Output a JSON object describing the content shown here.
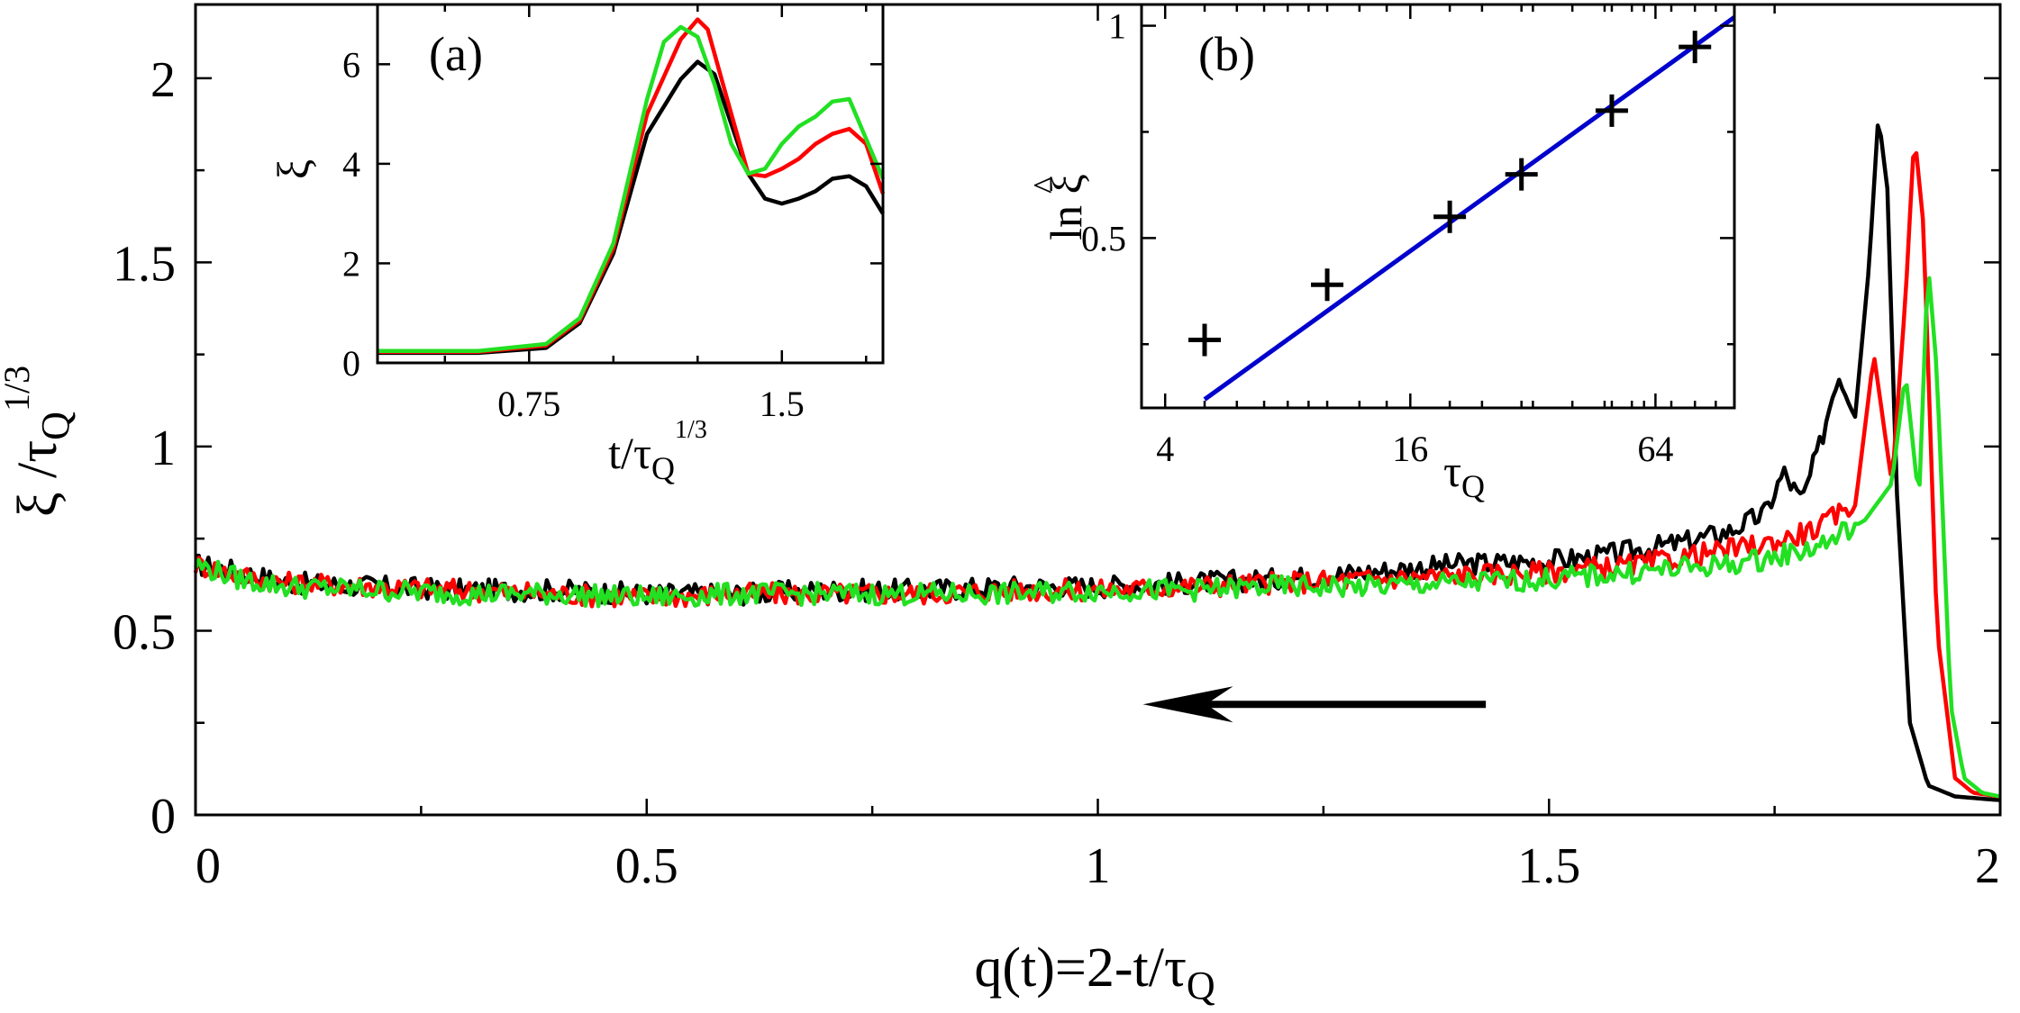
{
  "colors": {
    "black": "#000000",
    "red": "#ff0000",
    "green": "#22e022",
    "blue": "#0000cc"
  },
  "chart_data": [
    {
      "id": "main",
      "type": "line",
      "xlabel": "q(t)=2-t/τ_Q",
      "ylabel": "ξ /τ_Q^{1/3}",
      "xlim": [
        0,
        2
      ],
      "ylim": [
        0,
        2.2
      ],
      "xticks": [
        0,
        0.5,
        1,
        1.5,
        2
      ],
      "xtick_labels": [
        "0",
        "0.5",
        "1",
        "1.5",
        "2"
      ],
      "yticks": [
        0,
        0.5,
        1,
        1.5,
        2
      ],
      "ytick_labels": [
        "0",
        "0.5",
        "1",
        "1.5",
        "2"
      ],
      "annotation": "arrow pointing left (decreasing q)",
      "series": [
        {
          "color": "black",
          "x": [
            0,
            0.05,
            0.1,
            0.2,
            0.3,
            0.4,
            0.5,
            0.6,
            0.7,
            0.8,
            0.9,
            1.0,
            1.1,
            1.2,
            1.3,
            1.4,
            1.5,
            1.55,
            1.6,
            1.65,
            1.7,
            1.74,
            1.76,
            1.78,
            1.8,
            1.82,
            1.84,
            1.855,
            1.865,
            1.875,
            1.885,
            1.9,
            1.92,
            1.95,
            2.0
          ],
          "y": [
            0.68,
            0.66,
            0.63,
            0.62,
            0.61,
            0.61,
            0.6,
            0.6,
            0.61,
            0.61,
            0.62,
            0.62,
            0.63,
            0.64,
            0.66,
            0.68,
            0.69,
            0.7,
            0.72,
            0.74,
            0.77,
            0.82,
            0.93,
            0.85,
            1.0,
            1.2,
            1.1,
            1.5,
            1.9,
            1.7,
            0.9,
            0.25,
            0.08,
            0.05,
            0.04
          ]
        },
        {
          "color": "red",
          "x": [
            0,
            0.05,
            0.1,
            0.2,
            0.3,
            0.4,
            0.5,
            0.6,
            0.7,
            0.8,
            0.9,
            1.0,
            1.1,
            1.2,
            1.3,
            1.4,
            1.5,
            1.55,
            1.6,
            1.65,
            1.7,
            1.75,
            1.8,
            1.84,
            1.86,
            1.88,
            1.895,
            1.905,
            1.915,
            1.93,
            1.95,
            1.97,
            2.0
          ],
          "y": [
            0.68,
            0.65,
            0.63,
            0.62,
            0.61,
            0.6,
            0.59,
            0.6,
            0.6,
            0.6,
            0.61,
            0.61,
            0.62,
            0.63,
            0.64,
            0.65,
            0.66,
            0.67,
            0.68,
            0.7,
            0.72,
            0.74,
            0.78,
            0.85,
            1.25,
            0.9,
            1.4,
            1.85,
            1.6,
            0.5,
            0.1,
            0.06,
            0.05
          ]
        },
        {
          "color": "green",
          "x": [
            0,
            0.05,
            0.1,
            0.2,
            0.3,
            0.4,
            0.5,
            0.6,
            0.7,
            0.8,
            0.9,
            1.0,
            1.1,
            1.2,
            1.3,
            1.4,
            1.5,
            1.55,
            1.6,
            1.65,
            1.7,
            1.75,
            1.8,
            1.85,
            1.88,
            1.895,
            1.91,
            1.92,
            1.93,
            1.945,
            1.96,
            1.98,
            2.0
          ],
          "y": [
            0.68,
            0.64,
            0.62,
            0.61,
            0.6,
            0.6,
            0.59,
            0.6,
            0.6,
            0.6,
            0.6,
            0.61,
            0.61,
            0.62,
            0.62,
            0.63,
            0.64,
            0.65,
            0.66,
            0.67,
            0.68,
            0.7,
            0.73,
            0.8,
            0.9,
            1.2,
            0.85,
            1.5,
            1.2,
            0.3,
            0.1,
            0.06,
            0.05
          ]
        }
      ]
    },
    {
      "id": "inset-a",
      "type": "line",
      "panel_label": "(a)",
      "xlabel": "t/τ_Q^{1/3}",
      "ylabel": "ξ",
      "xlim": [
        0.3,
        1.8
      ],
      "ylim": [
        0,
        7.2
      ],
      "xticks": [
        0.75,
        1.5
      ],
      "xtick_labels": [
        "0.75",
        "1.5"
      ],
      "yticks": [
        0,
        2,
        4,
        6
      ],
      "ytick_labels": [
        "0",
        "2",
        "4",
        "6"
      ],
      "series": [
        {
          "color": "black",
          "x": [
            0.3,
            0.6,
            0.8,
            0.9,
            1.0,
            1.1,
            1.2,
            1.25,
            1.3,
            1.35,
            1.4,
            1.45,
            1.5,
            1.55,
            1.6,
            1.65,
            1.7,
            1.75,
            1.8
          ],
          "y": [
            0.2,
            0.2,
            0.3,
            0.8,
            2.2,
            4.6,
            5.7,
            6.05,
            5.8,
            4.8,
            3.8,
            3.3,
            3.2,
            3.3,
            3.45,
            3.7,
            3.75,
            3.55,
            3.0
          ]
        },
        {
          "color": "red",
          "x": [
            0.3,
            0.6,
            0.8,
            0.9,
            1.0,
            1.1,
            1.2,
            1.25,
            1.28,
            1.35,
            1.4,
            1.45,
            1.5,
            1.55,
            1.6,
            1.65,
            1.7,
            1.75,
            1.8
          ],
          "y": [
            0.22,
            0.22,
            0.35,
            0.85,
            2.3,
            5.0,
            6.5,
            6.9,
            6.7,
            5.0,
            3.8,
            3.75,
            3.9,
            4.1,
            4.4,
            4.6,
            4.7,
            4.4,
            3.4
          ]
        },
        {
          "color": "green",
          "x": [
            0.3,
            0.6,
            0.8,
            0.9,
            1.0,
            1.1,
            1.15,
            1.2,
            1.25,
            1.3,
            1.35,
            1.4,
            1.45,
            1.5,
            1.55,
            1.6,
            1.65,
            1.7,
            1.75,
            1.8
          ],
          "y": [
            0.24,
            0.24,
            0.38,
            0.9,
            2.4,
            5.3,
            6.45,
            6.75,
            6.55,
            5.6,
            4.4,
            3.8,
            3.9,
            4.4,
            4.75,
            4.95,
            5.25,
            5.3,
            4.5,
            3.7
          ]
        }
      ]
    },
    {
      "id": "inset-b",
      "type": "scatter",
      "panel_label": "(b)",
      "xlabel": "τ_Q",
      "ylabel": "ln ξ̂",
      "x_scale": "log",
      "xlim": [
        3.5,
        100
      ],
      "ylim": [
        0.1,
        1.05
      ],
      "xticks": [
        4,
        16,
        64
      ],
      "xtick_labels": [
        "4",
        "16",
        "64"
      ],
      "yticks": [
        0.5,
        1
      ],
      "ytick_labels": [
        "0.5",
        "1"
      ],
      "points": {
        "x": [
          5,
          10,
          20,
          30,
          50,
          80
        ],
        "y": [
          0.26,
          0.39,
          0.55,
          0.65,
          0.8,
          0.95
        ]
      },
      "fit_line": {
        "color": "blue",
        "x": [
          5,
          100
        ],
        "y": [
          0.12,
          1.02
        ]
      }
    }
  ],
  "arrow": {
    "direction": "left",
    "from_q": 1.43,
    "to_q": 1.05,
    "y": 0.3
  }
}
